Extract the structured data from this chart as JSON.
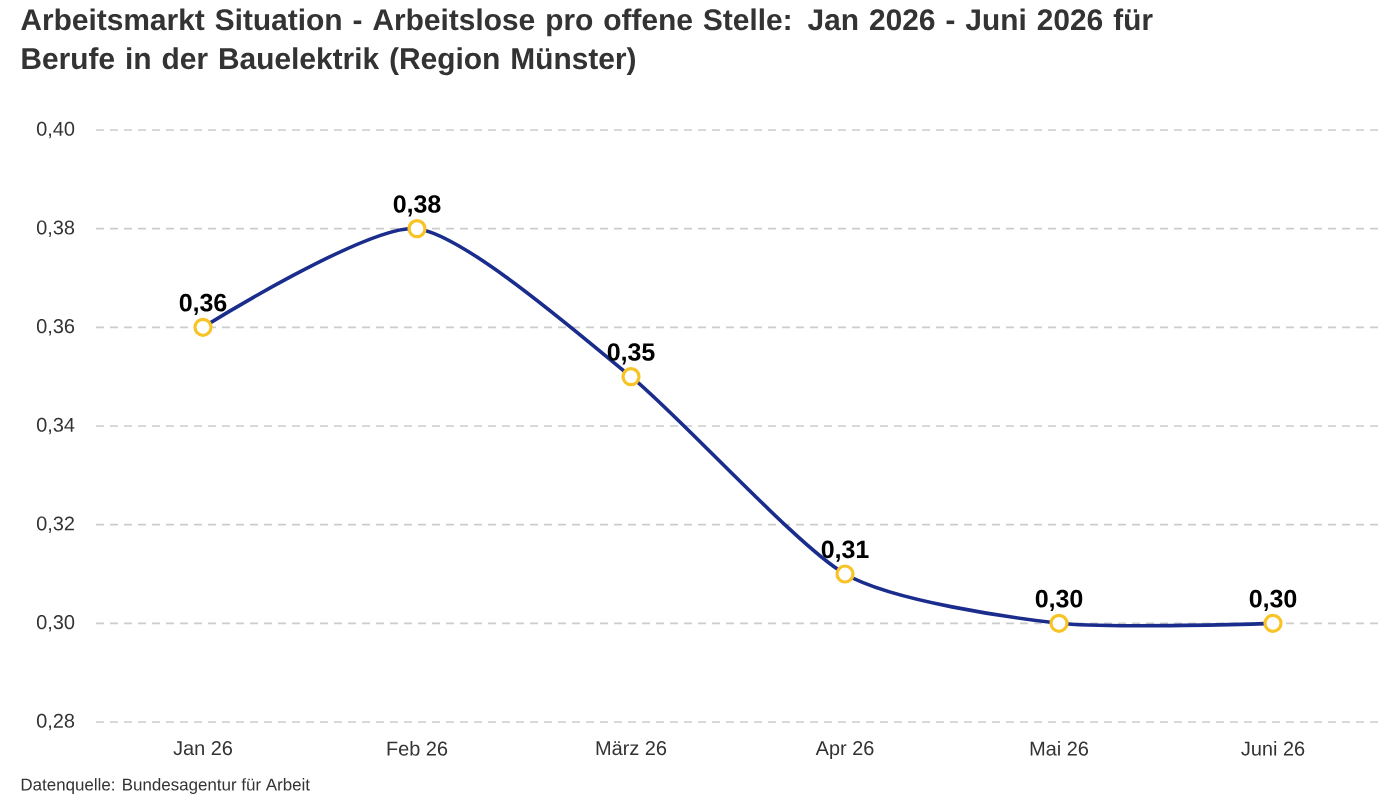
{
  "chart_data": {
    "type": "line",
    "title": "Arbeitsmarkt Situation - Arbeitslose pro offene Stelle: Jan 2026 - Juni 2026 für Berufe in der Bauelektrik (Region Münster)",
    "categories": [
      "Jan 26",
      "Feb 26",
      "März 26",
      "Apr 26",
      "Mai 26",
      "Juni 26"
    ],
    "series": [
      {
        "color": "#1a2d8c",
        "values": [
          0.36,
          0.38,
          0.35,
          0.31,
          0.3,
          0.3
        ],
        "value_labels": [
          "0,36",
          "0,38",
          "0,35",
          "0,31",
          "0,30",
          "0,30"
        ]
      }
    ],
    "ylim": [
      0.28,
      0.4
    ],
    "yticks": [
      {
        "value": 0.28,
        "label": "0,28"
      },
      {
        "value": 0.3,
        "label": "0,30"
      },
      {
        "value": 0.32,
        "label": "0,32"
      },
      {
        "value": 0.34,
        "label": "0,34"
      },
      {
        "value": 0.36,
        "label": "0,36"
      },
      {
        "value": 0.38,
        "label": "0,38"
      },
      {
        "value": 0.4,
        "label": "0,40"
      }
    ],
    "grid": "y",
    "marker": "circle",
    "line_style": "solid",
    "annotations": [
      "Datenquelle: Bundesagentur für Arbeit"
    ]
  }
}
